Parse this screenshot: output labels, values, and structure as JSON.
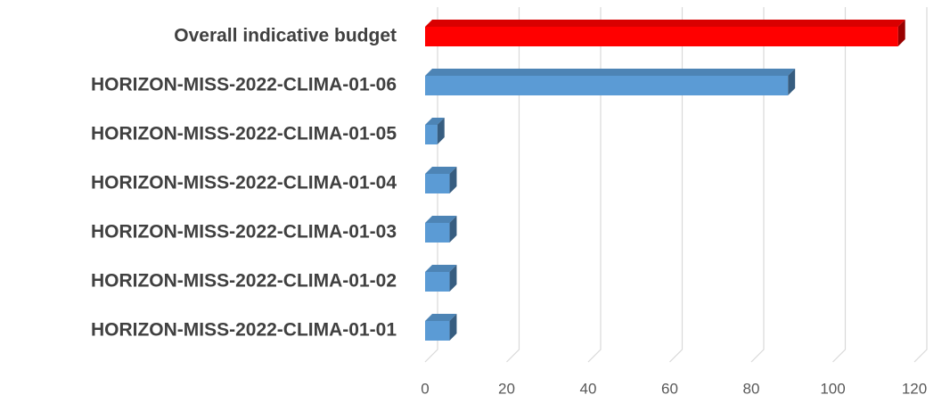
{
  "chart_data": {
    "type": "bar",
    "orientation": "horizontal",
    "three_d": true,
    "categories": [
      "Overall indicative budget",
      "HORIZON-MISS-2022-CLIMA-01-06",
      "HORIZON-MISS-2022-CLIMA-01-05",
      "HORIZON-MISS-2022-CLIMA-01-04",
      "HORIZON-MISS-2022-CLIMA-01-03",
      "HORIZON-MISS-2022-CLIMA-01-02",
      "HORIZON-MISS-2022-CLIMA-01-01"
    ],
    "values": [
      116,
      89,
      3,
      6,
      6,
      6,
      6
    ],
    "colors": [
      "#ff0000",
      "#5b9bd5",
      "#5b9bd5",
      "#5b9bd5",
      "#5b9bd5",
      "#5b9bd5",
      "#5b9bd5"
    ],
    "xlim": [
      0,
      120
    ],
    "xticks": [
      0,
      20,
      40,
      60,
      80,
      100,
      120
    ],
    "grid": true
  }
}
